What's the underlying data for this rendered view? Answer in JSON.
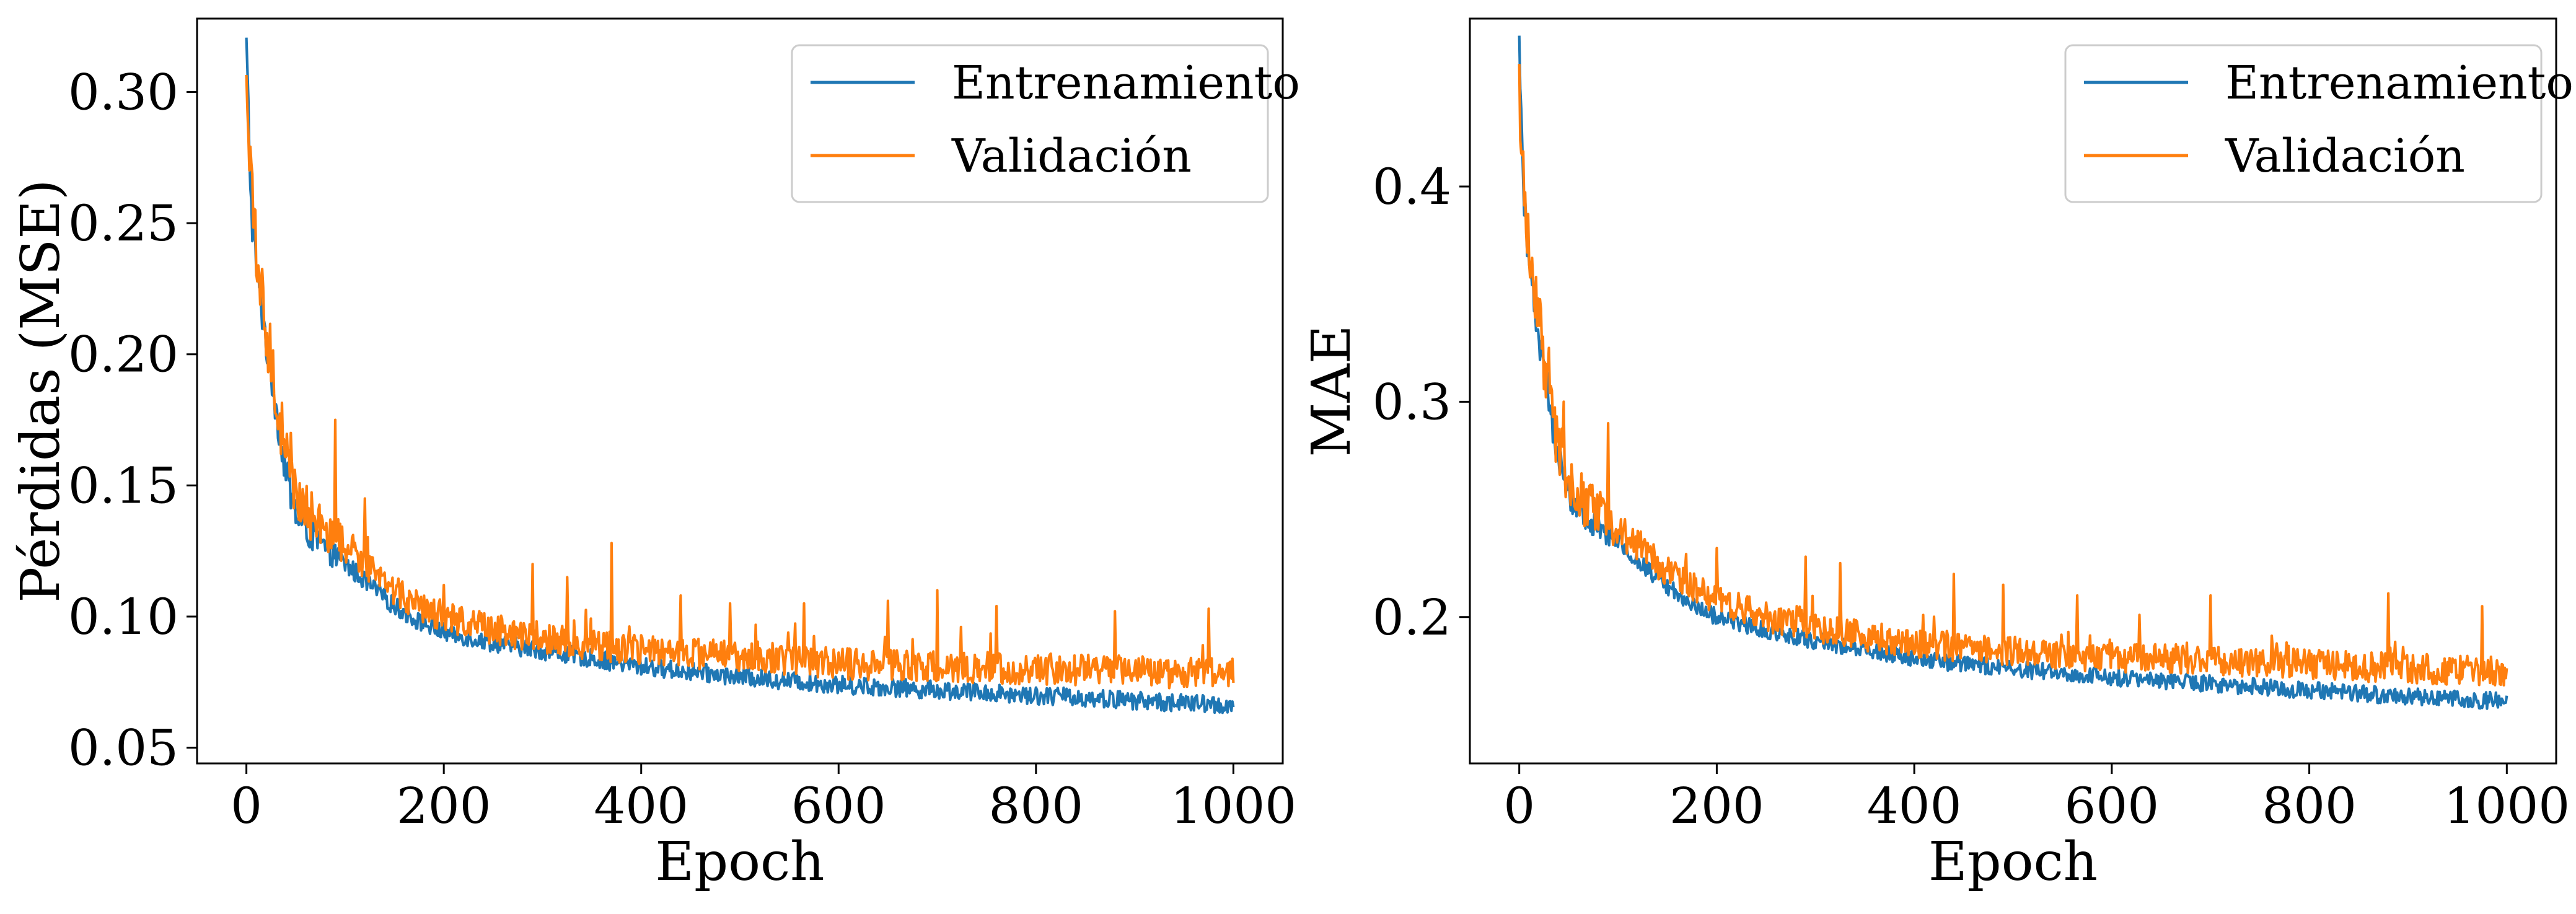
{
  "chart_data": [
    {
      "type": "line",
      "xlabel": "Epoch",
      "ylabel": "Pérdidas (MSE)",
      "xlim": [
        -50,
        1050
      ],
      "ylim": [
        0.044,
        0.328
      ],
      "xticks": [
        0,
        200,
        400,
        600,
        800,
        1000
      ],
      "xtick_labels": [
        "0",
        "200",
        "400",
        "600",
        "800",
        "1000"
      ],
      "yticks": [
        0.05,
        0.1,
        0.15,
        0.2,
        0.25,
        0.3
      ],
      "ytick_labels": [
        "0.05",
        "0.10",
        "0.15",
        "0.20",
        "0.25",
        "0.30"
      ],
      "grid": false,
      "legend_position": "top-right",
      "series": [
        {
          "name": "Entrenamiento",
          "color": "#1f77b4",
          "x": [
            0,
            5,
            10,
            20,
            30,
            40,
            50,
            60,
            80,
            100,
            125,
            150,
            175,
            200,
            250,
            300,
            350,
            400,
            450,
            500,
            600,
            700,
            800,
            900,
            1000
          ],
          "y": [
            0.317,
            0.255,
            0.233,
            0.205,
            0.18,
            0.155,
            0.139,
            0.133,
            0.126,
            0.12,
            0.112,
            0.104,
            0.098,
            0.094,
            0.09,
            0.087,
            0.084,
            0.081,
            0.079,
            0.077,
            0.074,
            0.072,
            0.07,
            0.068,
            0.066
          ],
          "noise": 0.0035
        },
        {
          "name": "Validación",
          "color": "#ff7f0e",
          "x": [
            0,
            5,
            10,
            20,
            30,
            40,
            50,
            60,
            80,
            100,
            125,
            150,
            175,
            200,
            250,
            300,
            350,
            400,
            450,
            500,
            600,
            700,
            800,
            900,
            1000
          ],
          "y": [
            0.3,
            0.262,
            0.238,
            0.21,
            0.185,
            0.16,
            0.147,
            0.14,
            0.133,
            0.127,
            0.118,
            0.11,
            0.104,
            0.1,
            0.095,
            0.092,
            0.089,
            0.087,
            0.086,
            0.085,
            0.082,
            0.081,
            0.08,
            0.079,
            0.078
          ],
          "noise": 0.006,
          "spikes": [
            [
              28,
              0.185
            ],
            [
              45,
              0.17
            ],
            [
              90,
              0.175
            ],
            [
              120,
              0.145
            ],
            [
              200,
              0.112
            ],
            [
              290,
              0.12
            ],
            [
              325,
              0.115
            ],
            [
              370,
              0.128
            ],
            [
              440,
              0.108
            ],
            [
              490,
              0.105
            ],
            [
              565,
              0.105
            ],
            [
              650,
              0.106
            ],
            [
              700,
              0.11
            ],
            [
              760,
              0.104
            ],
            [
              880,
              0.102
            ],
            [
              975,
              0.103
            ]
          ]
        }
      ]
    },
    {
      "type": "line",
      "xlabel": "Epoch",
      "ylabel": "MAE",
      "xlim": [
        -50,
        1050
      ],
      "ylim": [
        0.132,
        0.478
      ],
      "xticks": [
        0,
        200,
        400,
        600,
        800,
        1000
      ],
      "xtick_labels": [
        "0",
        "200",
        "400",
        "600",
        "800",
        "1000"
      ],
      "yticks": [
        0.2,
        0.3,
        0.4
      ],
      "ytick_labels": [
        "0.2",
        "0.3",
        "0.4"
      ],
      "grid": false,
      "legend_position": "top-right",
      "series": [
        {
          "name": "Entrenamiento",
          "color": "#1f77b4",
          "x": [
            0,
            5,
            10,
            20,
            30,
            40,
            50,
            60,
            80,
            100,
            125,
            150,
            175,
            200,
            250,
            300,
            350,
            400,
            450,
            500,
            600,
            700,
            800,
            900,
            1000
          ],
          "y": [
            0.465,
            0.395,
            0.365,
            0.33,
            0.3,
            0.272,
            0.258,
            0.25,
            0.242,
            0.235,
            0.224,
            0.214,
            0.206,
            0.2,
            0.194,
            0.189,
            0.185,
            0.181,
            0.178,
            0.176,
            0.172,
            0.169,
            0.166,
            0.163,
            0.161
          ],
          "noise": 0.004
        },
        {
          "name": "Validación",
          "color": "#ff7f0e",
          "x": [
            0,
            5,
            10,
            20,
            30,
            40,
            50,
            60,
            80,
            100,
            125,
            150,
            175,
            200,
            250,
            300,
            350,
            400,
            450,
            500,
            600,
            700,
            800,
            900,
            1000
          ],
          "y": [
            0.448,
            0.4,
            0.372,
            0.335,
            0.305,
            0.278,
            0.264,
            0.256,
            0.248,
            0.241,
            0.23,
            0.221,
            0.214,
            0.208,
            0.2,
            0.195,
            0.191,
            0.188,
            0.186,
            0.184,
            0.181,
            0.18,
            0.178,
            0.176,
            0.175
          ],
          "noise": 0.007,
          "spikes": [
            [
              30,
              0.325
            ],
            [
              45,
              0.3
            ],
            [
              90,
              0.29
            ],
            [
              120,
              0.24
            ],
            [
              200,
              0.232
            ],
            [
              290,
              0.228
            ],
            [
              325,
              0.225
            ],
            [
              440,
              0.22
            ],
            [
              490,
              0.215
            ],
            [
              565,
              0.21
            ],
            [
              700,
              0.21
            ],
            [
              880,
              0.211
            ],
            [
              975,
              0.205
            ]
          ]
        }
      ]
    }
  ]
}
